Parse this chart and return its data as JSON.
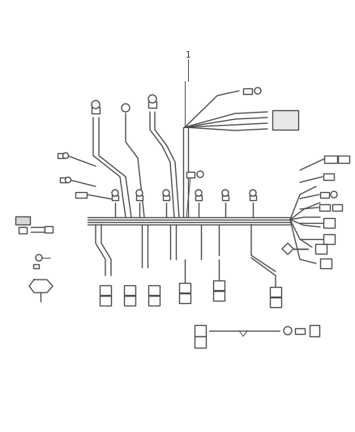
{
  "background_color": "#ffffff",
  "line_color": "#4a4a4a",
  "fig_width": 4.38,
  "fig_height": 5.33,
  "dpi": 100,
  "label_1": "1"
}
